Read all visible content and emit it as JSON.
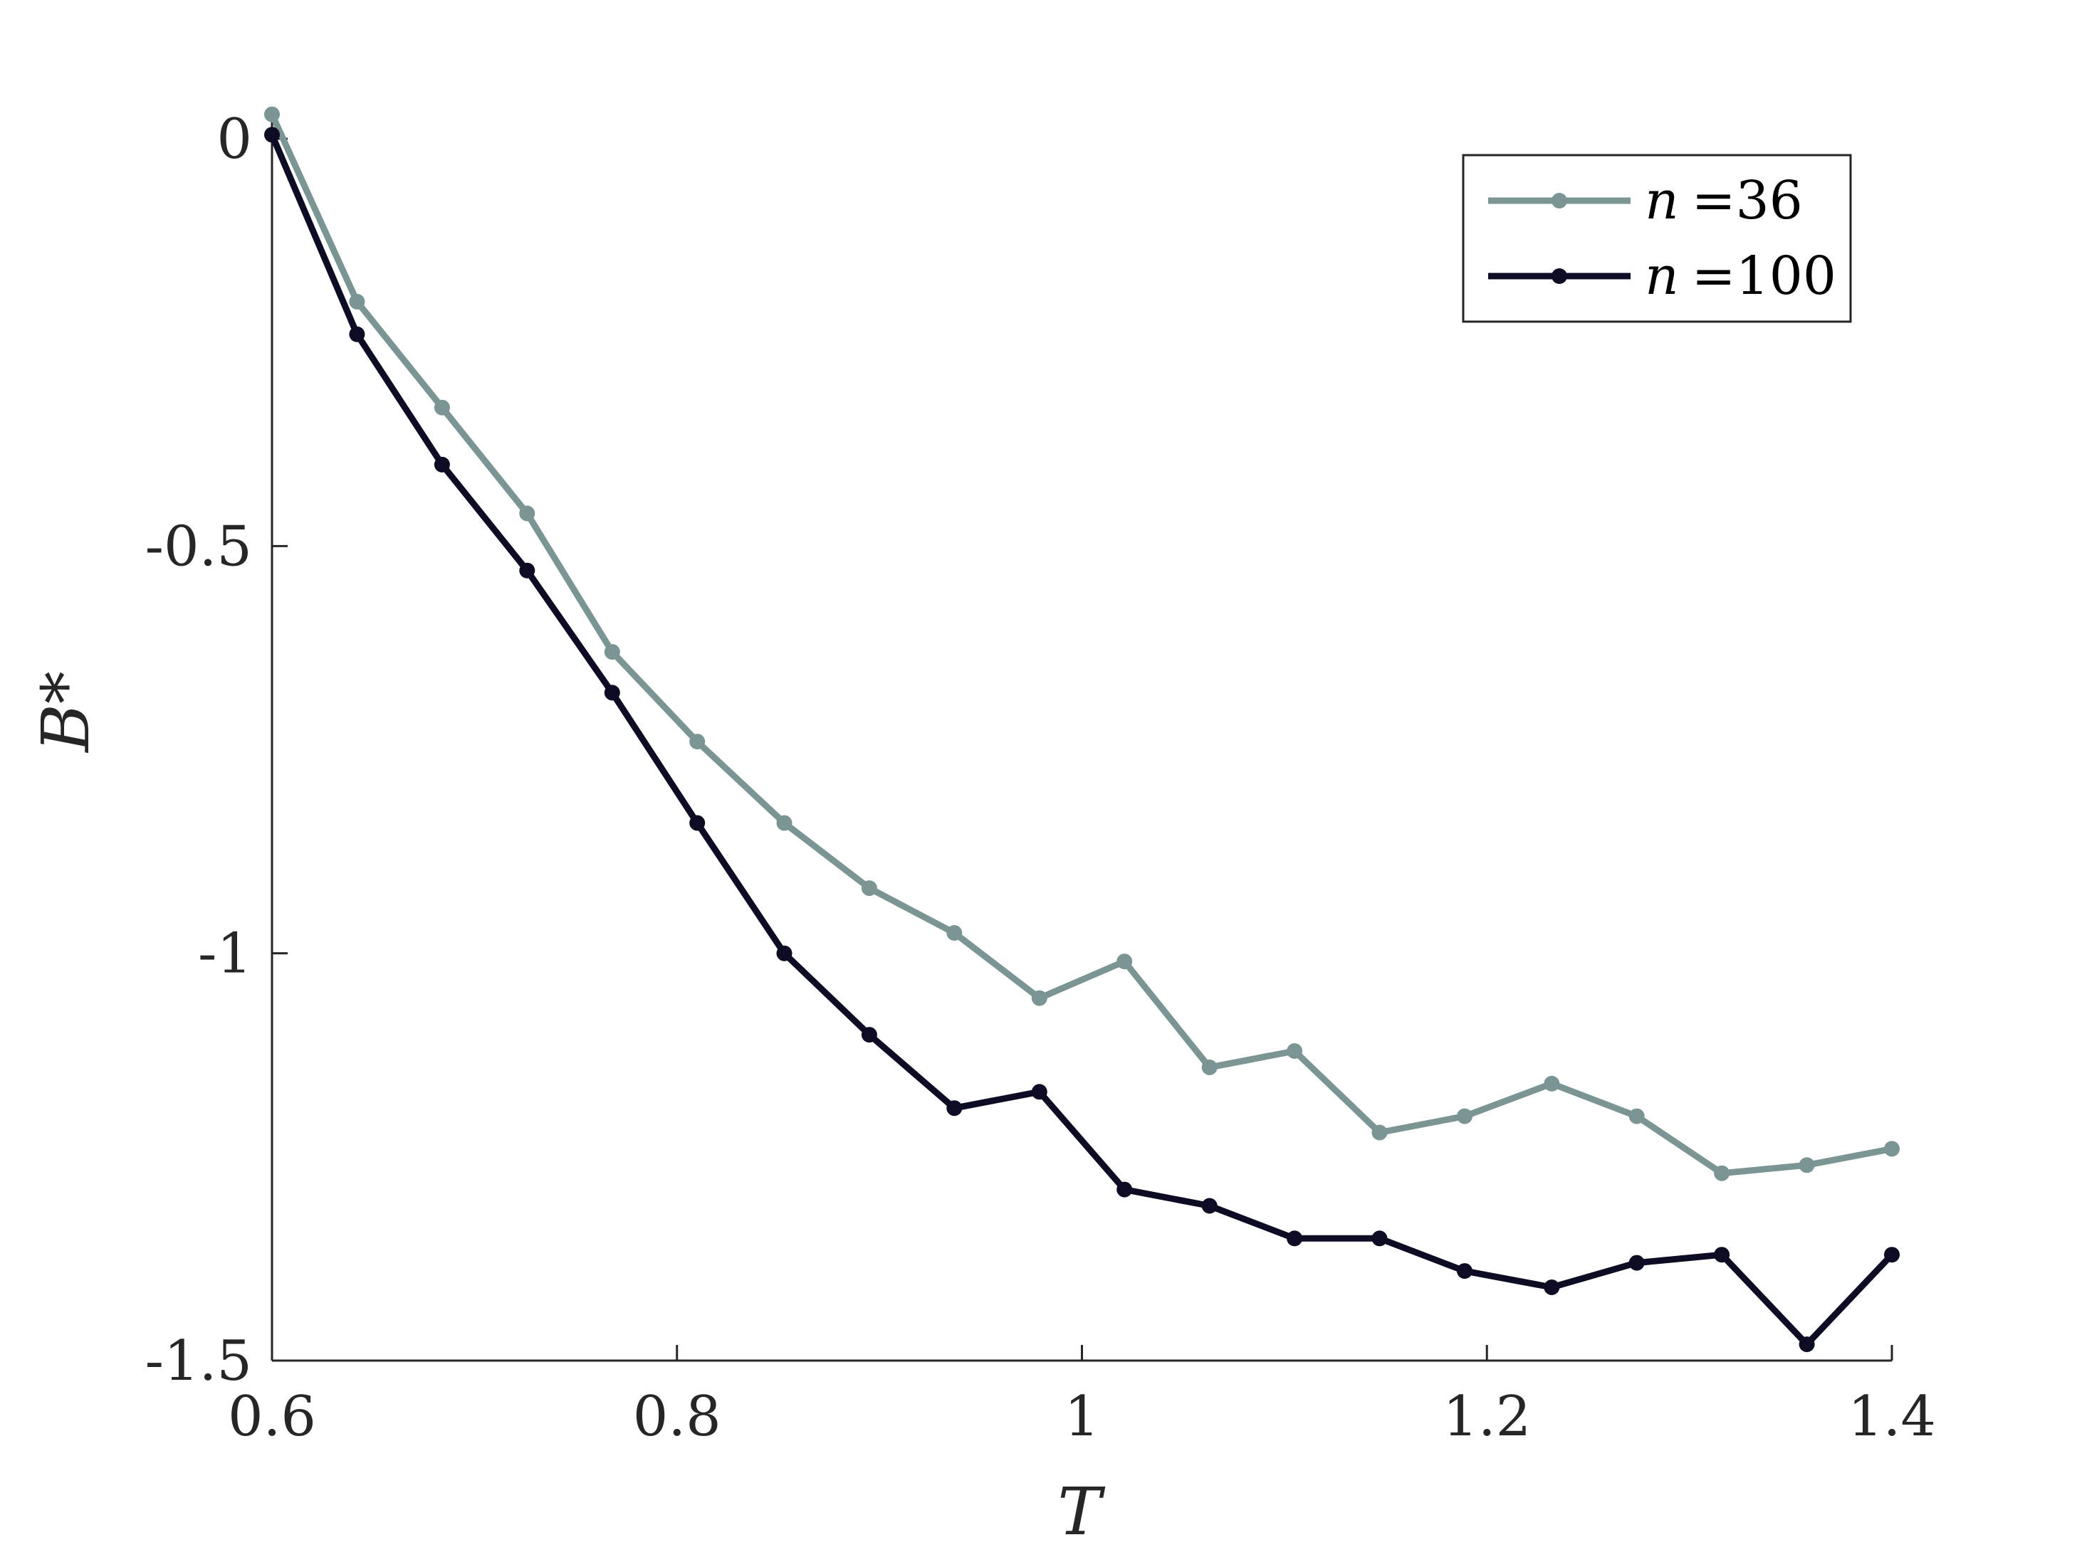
{
  "chart_data": {
    "type": "line",
    "title": "",
    "xlabel": "T",
    "ylabel": "B*",
    "xlim": [
      0.6,
      1.4
    ],
    "ylim": [
      -1.5,
      0.05
    ],
    "xticks": [
      0.6,
      0.8,
      1,
      1.2,
      1.4
    ],
    "xtick_labels": [
      "0.6",
      "0.8",
      "1",
      "1.2",
      "1.4"
    ],
    "yticks": [
      0,
      -0.5,
      -1,
      -1.5
    ],
    "ytick_labels": [
      "0",
      "-0.5",
      "-1",
      "-1.5"
    ],
    "grid": false,
    "legend_position": "top-right",
    "x": [
      0.6,
      0.642,
      0.684,
      0.726,
      0.768,
      0.81,
      0.853,
      0.895,
      0.937,
      0.979,
      1.021,
      1.063,
      1.105,
      1.147,
      1.189,
      1.232,
      1.274,
      1.316,
      1.358,
      1.4
    ],
    "series": [
      {
        "name": "n =36",
        "legend_symbol": "n",
        "legend_value": "=36",
        "color": "#7a9593",
        "values": [
          0.03,
          -0.2,
          -0.33,
          -0.46,
          -0.63,
          -0.74,
          -0.84,
          -0.92,
          -0.975,
          -1.055,
          -1.01,
          -1.14,
          -1.12,
          -1.22,
          -1.2,
          -1.16,
          -1.2,
          -1.27,
          -1.26,
          -1.24
        ]
      },
      {
        "name": "n =100",
        "legend_symbol": "n",
        "legend_value": "=100",
        "color": "#0c0c24",
        "values": [
          0.005,
          -0.24,
          -0.4,
          -0.53,
          -0.68,
          -0.84,
          -1.0,
          -1.1,
          -1.19,
          -1.17,
          -1.29,
          -1.31,
          -1.35,
          -1.35,
          -1.39,
          -1.41,
          -1.38,
          -1.37,
          -1.48,
          -1.37
        ]
      }
    ]
  }
}
